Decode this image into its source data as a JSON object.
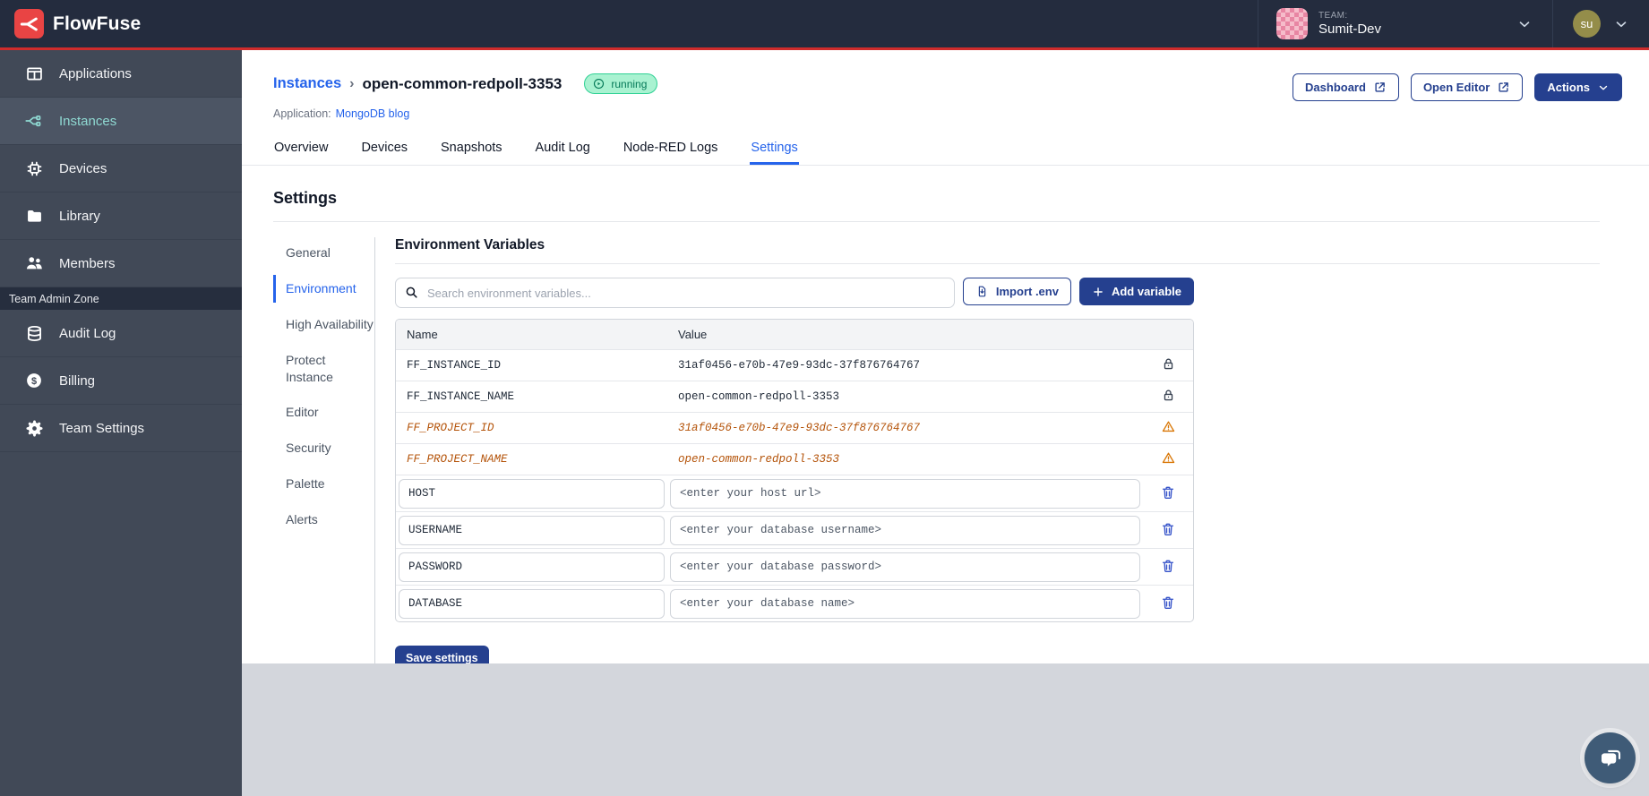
{
  "colors": {
    "header_bg": "#242c3e",
    "sidebar_bg": "#414957",
    "brand_red": "#d12d2e",
    "primary": "#25408f",
    "link_blue": "#2563eb",
    "accent_teal": "#8fd9d2",
    "warning_orange": "#b45309",
    "running_green": "#2fd194",
    "footer_gray": "#d3d6dc"
  },
  "brand": {
    "name": "FlowFuse"
  },
  "header": {
    "team_label": "TEAM:",
    "team_name": "Sumit-Dev",
    "user_initials": "su"
  },
  "sidebar": {
    "items": [
      {
        "label": "Applications",
        "icon": "applications",
        "active": false
      },
      {
        "label": "Instances",
        "icon": "instances",
        "active": true
      },
      {
        "label": "Devices",
        "icon": "devices",
        "active": false
      },
      {
        "label": "Library",
        "icon": "library",
        "active": false
      },
      {
        "label": "Members",
        "icon": "members",
        "active": false
      }
    ],
    "admin_zone_label": "Team Admin Zone",
    "admin_items": [
      {
        "label": "Audit Log",
        "icon": "audit-log",
        "active": false
      },
      {
        "label": "Billing",
        "icon": "billing",
        "active": false
      },
      {
        "label": "Team Settings",
        "icon": "gear",
        "active": false
      }
    ]
  },
  "page": {
    "breadcrumb_root": "Instances",
    "separator": "›",
    "instance_name": "open-common-redpoll-3353",
    "status": "running",
    "application_label": "Application:",
    "application_name": "MongoDB blog",
    "buttons": {
      "dashboard": "Dashboard",
      "open_editor": "Open Editor",
      "actions": "Actions"
    }
  },
  "tabs": [
    {
      "label": "Overview",
      "active": false
    },
    {
      "label": "Devices",
      "active": false
    },
    {
      "label": "Snapshots",
      "active": false
    },
    {
      "label": "Audit Log",
      "active": false
    },
    {
      "label": "Node-RED Logs",
      "active": false
    },
    {
      "label": "Settings",
      "active": true
    }
  ],
  "settings": {
    "title": "Settings",
    "nav": [
      {
        "label": "General",
        "active": false
      },
      {
        "label": "Environment",
        "active": true
      },
      {
        "label": "High Availability",
        "active": false
      },
      {
        "label": "Protect Instance",
        "active": false
      },
      {
        "label": "Editor",
        "active": false
      },
      {
        "label": "Security",
        "active": false
      },
      {
        "label": "Palette",
        "active": false
      },
      {
        "label": "Alerts",
        "active": false
      }
    ]
  },
  "env": {
    "title": "Environment Variables",
    "search_placeholder": "Search environment variables...",
    "import_label": "Import .env",
    "add_label": "Add variable",
    "save_label": "Save settings",
    "table": {
      "name_header": "Name",
      "value_header": "Value",
      "rows": [
        {
          "name": "FF_INSTANCE_ID",
          "value": "31af0456-e70b-47e9-93dc-37f876764767",
          "kind": "locked"
        },
        {
          "name": "FF_INSTANCE_NAME",
          "value": "open-common-redpoll-3353",
          "kind": "locked"
        },
        {
          "name": "FF_PROJECT_ID",
          "value": "31af0456-e70b-47e9-93dc-37f876764767",
          "kind": "deprecated"
        },
        {
          "name": "FF_PROJECT_NAME",
          "value": "open-common-redpoll-3353",
          "kind": "deprecated"
        },
        {
          "name": "HOST",
          "value_placeholder": "<enter your host url>",
          "kind": "editable"
        },
        {
          "name": "USERNAME",
          "value_placeholder": "<enter your database username>",
          "kind": "editable"
        },
        {
          "name": "PASSWORD",
          "value_placeholder": "<enter your database password>",
          "kind": "editable"
        },
        {
          "name": "DATABASE",
          "value_placeholder": "<enter your database name>",
          "kind": "editable"
        }
      ]
    }
  }
}
